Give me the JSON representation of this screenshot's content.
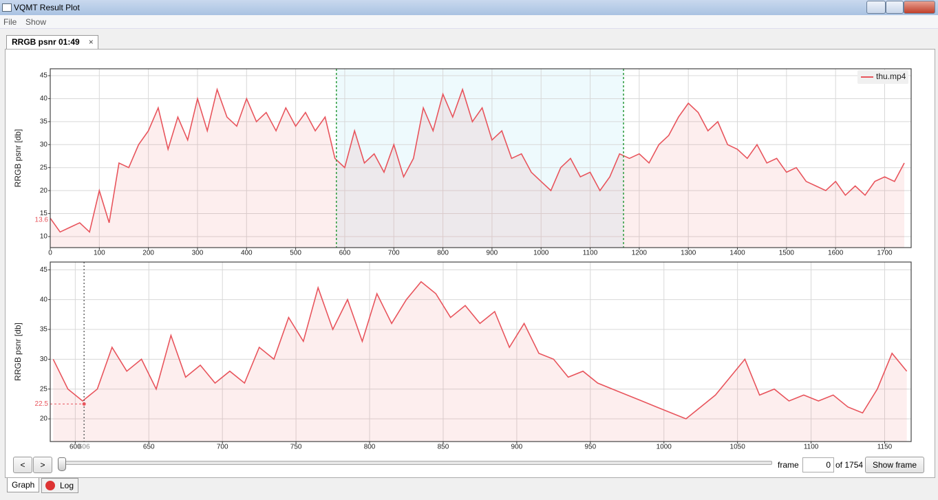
{
  "window": {
    "title": "VQMT Result Plot",
    "menu": [
      "File",
      "Show"
    ],
    "tab": "RRGB psnr 01:49"
  },
  "controls": {
    "prev": "<",
    "next": ">",
    "frame_label": "frame",
    "frame": 0,
    "total_label": "of 1754",
    "show_button": "Show frame",
    "bottom_tabs": [
      "Graph",
      "Log"
    ]
  },
  "chart_data": [
    {
      "type": "line",
      "ylabel": "RRGB psnr [db]",
      "legend": "thu.mp4",
      "color": "#e8545c",
      "xlim": [
        0,
        1754
      ],
      "ylim": [
        7.6,
        46.5
      ],
      "xticks": [
        0,
        100,
        200,
        300,
        400,
        500,
        600,
        700,
        800,
        900,
        1000,
        1100,
        1200,
        1300,
        1400,
        1500,
        1600,
        1700
      ],
      "yticks": [
        10,
        15,
        20,
        25,
        30,
        35,
        40,
        45
      ],
      "grid": true,
      "selection": [
        583,
        1168
      ],
      "marker_y": 13.6,
      "series": [
        {
          "name": "thu.mp4",
          "color": "#e8545c",
          "x": [
            0,
            20,
            40,
            60,
            80,
            100,
            120,
            140,
            160,
            180,
            200,
            220,
            240,
            260,
            280,
            300,
            320,
            340,
            360,
            380,
            400,
            420,
            440,
            460,
            480,
            500,
            520,
            540,
            560,
            580,
            600,
            620,
            640,
            660,
            680,
            700,
            720,
            740,
            760,
            780,
            800,
            820,
            840,
            860,
            880,
            900,
            920,
            940,
            960,
            980,
            1000,
            1020,
            1040,
            1060,
            1080,
            1100,
            1120,
            1140,
            1160,
            1180,
            1200,
            1220,
            1240,
            1260,
            1280,
            1300,
            1320,
            1340,
            1360,
            1380,
            1400,
            1420,
            1440,
            1460,
            1480,
            1500,
            1520,
            1540,
            1560,
            1580,
            1600,
            1620,
            1640,
            1660,
            1680,
            1700,
            1720,
            1740
          ],
          "values": [
            14,
            11,
            12,
            13,
            11,
            20,
            13,
            26,
            25,
            30,
            33,
            38,
            29,
            36,
            31,
            40,
            33,
            42,
            36,
            34,
            40,
            35,
            37,
            33,
            38,
            34,
            37,
            33,
            36,
            27,
            25,
            33,
            26,
            28,
            24,
            30,
            23,
            27,
            38,
            33,
            41,
            36,
            42,
            35,
            38,
            31,
            33,
            27,
            28,
            24,
            22,
            20,
            25,
            27,
            23,
            24,
            20,
            23,
            28,
            27,
            28,
            26,
            30,
            32,
            36,
            39,
            37,
            33,
            35,
            30,
            29,
            27,
            30,
            26,
            27,
            24,
            25,
            22,
            21,
            20,
            22,
            19,
            21,
            19,
            22,
            23,
            22,
            26
          ]
        }
      ]
    },
    {
      "type": "line",
      "ylabel": "RRGB psnr [db]",
      "color": "#e8545c",
      "xlim": [
        583,
        1168
      ],
      "ylim": [
        16.2,
        46.3
      ],
      "xticks": [
        600,
        650,
        700,
        750,
        800,
        850,
        900,
        950,
        1000,
        1050,
        1100,
        1150
      ],
      "yticks": [
        20,
        25,
        30,
        35,
        40,
        45
      ],
      "grid": true,
      "cursor": {
        "x": 606,
        "y": 22.5
      },
      "series": [
        {
          "name": "thu.mp4",
          "color": "#e8545c",
          "x": [
            585,
            595,
            605,
            615,
            625,
            635,
            645,
            655,
            665,
            675,
            685,
            695,
            705,
            715,
            725,
            735,
            745,
            755,
            765,
            775,
            785,
            795,
            805,
            815,
            825,
            835,
            845,
            855,
            865,
            875,
            885,
            895,
            905,
            915,
            925,
            935,
            945,
            955,
            965,
            975,
            985,
            995,
            1005,
            1015,
            1025,
            1035,
            1045,
            1055,
            1065,
            1075,
            1085,
            1095,
            1105,
            1115,
            1125,
            1135,
            1145,
            1155,
            1165
          ],
          "values": [
            30,
            25,
            23,
            25,
            32,
            28,
            30,
            25,
            34,
            27,
            29,
            26,
            28,
            26,
            32,
            30,
            37,
            33,
            42,
            35,
            40,
            33,
            41,
            36,
            40,
            43,
            41,
            37,
            39,
            36,
            38,
            32,
            36,
            31,
            30,
            27,
            28,
            26,
            25,
            24,
            23,
            22,
            21,
            20,
            22,
            24,
            27,
            30,
            24,
            25,
            23,
            24,
            23,
            24,
            22,
            21,
            25,
            31,
            28
          ]
        }
      ]
    }
  ]
}
